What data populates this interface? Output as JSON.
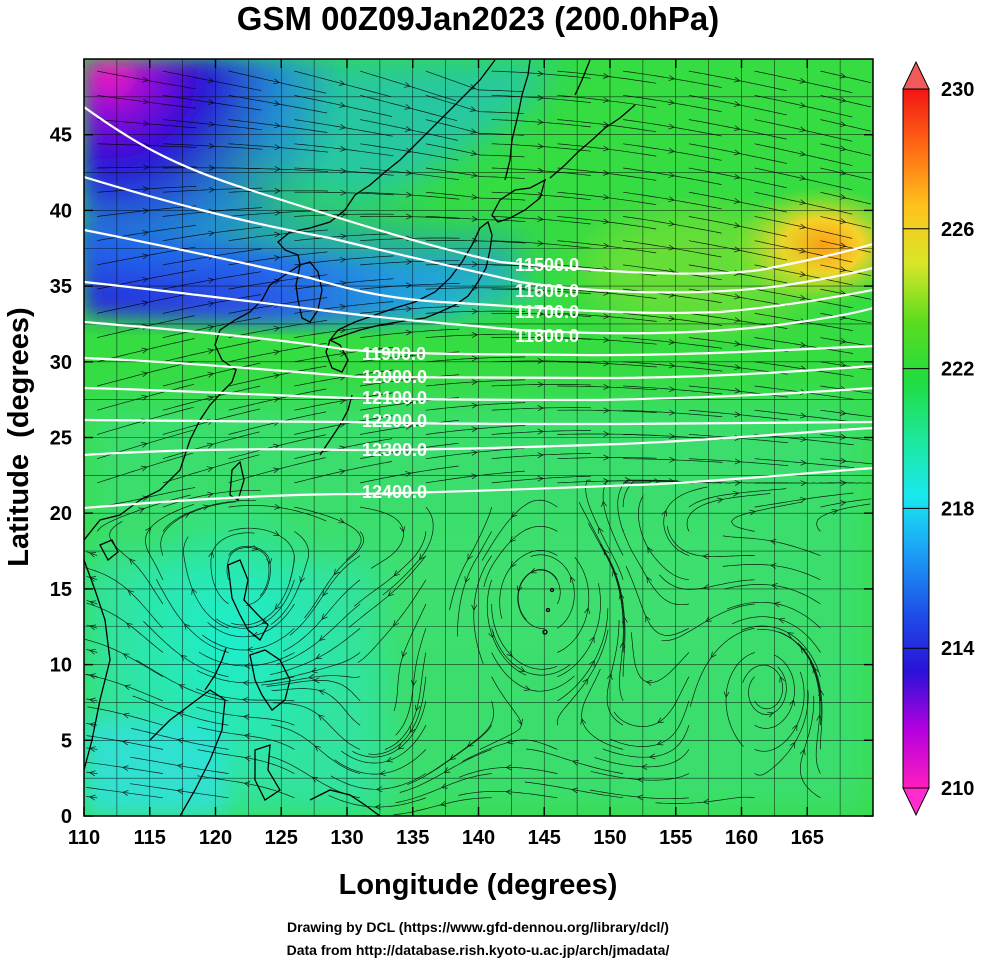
{
  "title": "GSM 00Z09Jan2023 (200.0hPa)",
  "xlabel": "Longitude (degrees)",
  "ylabel": "Latitude  (degrees)",
  "credits": [
    "Drawing by DCL (https://www.gfd-dennou.org/library/dcl/)",
    "Data from http://database.rish.kyoto-u.ac.jp/arch/jmadata/"
  ],
  "chart_data": {
    "type": "heatmap",
    "title": "GSM 00Z09Jan2023 (200.0hPa)",
    "xlabel": "Longitude (degrees)",
    "ylabel": "Latitude  (degrees)",
    "xlim": [
      110,
      170
    ],
    "ylim": [
      0,
      50
    ],
    "xticks": [
      110,
      115,
      120,
      125,
      130,
      135,
      140,
      145,
      150,
      155,
      160,
      165
    ],
    "yticks": [
      0,
      5,
      10,
      15,
      20,
      25,
      30,
      35,
      40,
      45
    ],
    "grid": true,
    "colorbar": {
      "range": [
        210,
        230
      ],
      "ticks": [
        210,
        214,
        218,
        222,
        226,
        230
      ],
      "colors": [
        "#ff1dbd",
        "#b500e0",
        "#2a12d8",
        "#1e4fe8",
        "#1c9cf6",
        "#19e8f0",
        "#1de89a",
        "#21dc40",
        "#5cdc1e",
        "#d8e628",
        "#ffc21c",
        "#ff6a14",
        "#f21414"
      ],
      "placement": "right"
    },
    "contours": {
      "values": [
        11500,
        11600,
        11700,
        11800,
        11900,
        12000,
        12100,
        12200,
        12300,
        12400
      ],
      "labels": [
        "11500.0",
        "11600.0",
        "11700.0",
        "11800.0",
        "11900.0",
        "12000.0",
        "12100.0",
        "12200.0",
        "12300.0",
        "12400.0"
      ],
      "color": "#ffffff"
    },
    "field_features": [
      {
        "label": "cold core",
        "lon": 113,
        "lat": 48,
        "value": 210
      },
      {
        "label": "cold band",
        "lon": 120,
        "lat": 40,
        "value": 214
      },
      {
        "label": "cold band",
        "lon": 130,
        "lat": 37,
        "value": 216
      },
      {
        "label": "warm core",
        "lon": 165,
        "lat": 39.5,
        "value": 226
      },
      {
        "label": "tropics",
        "lon": 130,
        "lat": 10,
        "value": 220
      }
    ],
    "vector_field": "streamlines",
    "basemap": "coastlines"
  }
}
